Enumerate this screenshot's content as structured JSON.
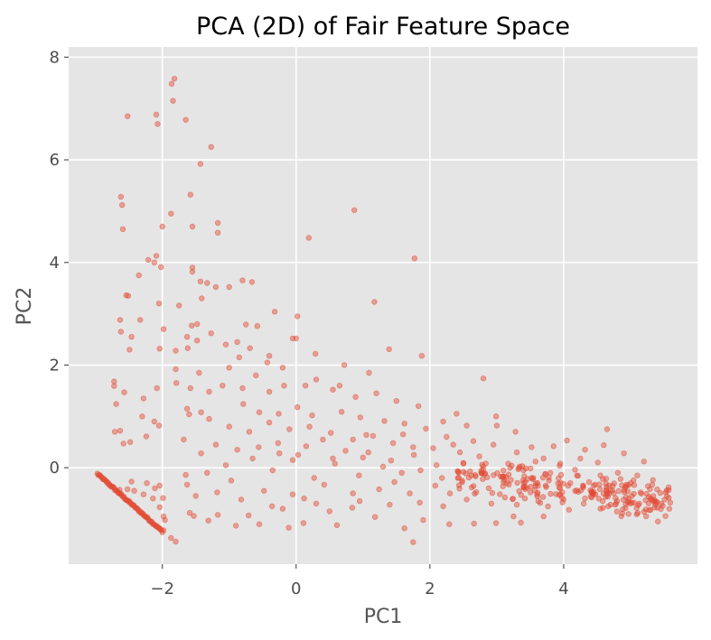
{
  "chart_data": {
    "type": "scatter",
    "title": "PCA (2D) of Fair Feature Space",
    "xlabel": "PC1",
    "ylabel": "PC2",
    "xlim": [
      -3.4,
      6.0
    ],
    "ylim": [
      -1.88,
      8.2
    ],
    "xticks": [
      -2,
      0,
      2,
      4
    ],
    "yticks": [
      0,
      2,
      4,
      6,
      8
    ],
    "xtick_labels": [
      "−2",
      "0",
      "2",
      "4"
    ],
    "ytick_labels": [
      "0",
      "2",
      "4",
      "6",
      "8"
    ],
    "grid": true,
    "style": "ggplot",
    "colors": {
      "point": "#E24A33",
      "background": "#E5E5E5",
      "grid": "#FFFFFF"
    },
    "points": [
      [
        -2.52,
        6.85
      ],
      [
        -2.09,
        6.88
      ],
      [
        -2.07,
        6.7
      ],
      [
        -1.82,
        7.58
      ],
      [
        -1.86,
        7.48
      ],
      [
        -1.84,
        7.15
      ],
      [
        -1.65,
        6.78
      ],
      [
        -1.27,
        6.25
      ],
      [
        -1.43,
        5.92
      ],
      [
        -1.58,
        5.32
      ],
      [
        -1.87,
        4.95
      ],
      [
        -1.55,
        4.7
      ],
      [
        -1.17,
        4.77
      ],
      [
        -1.17,
        4.58
      ],
      [
        -2.62,
        5.28
      ],
      [
        -2.6,
        5.12
      ],
      [
        -2.59,
        4.65
      ],
      [
        -2.0,
        4.7
      ],
      [
        0.19,
        4.48
      ],
      [
        0.87,
        5.02
      ],
      [
        1.77,
        4.08
      ],
      [
        -2.21,
        4.05
      ],
      [
        -2.09,
        4.13
      ],
      [
        -2.12,
        4.0
      ],
      [
        -2.35,
        3.75
      ],
      [
        -2.02,
        3.91
      ],
      [
        -1.55,
        3.9
      ],
      [
        -1.55,
        3.82
      ],
      [
        -1.43,
        3.63
      ],
      [
        -1.33,
        3.6
      ],
      [
        -0.8,
        3.65
      ],
      [
        -0.66,
        3.62
      ],
      [
        -1.0,
        3.52
      ],
      [
        -1.2,
        3.52
      ],
      [
        -2.54,
        3.36
      ],
      [
        -2.51,
        3.35
      ],
      [
        -2.05,
        3.2
      ],
      [
        -1.75,
        3.16
      ],
      [
        -1.41,
        3.3
      ],
      [
        -1.56,
        2.77
      ],
      [
        -2.63,
        2.88
      ],
      [
        -2.62,
        2.65
      ],
      [
        -2.33,
        2.88
      ],
      [
        -2.46,
        2.55
      ],
      [
        -1.98,
        2.7
      ],
      [
        -1.63,
        2.55
      ],
      [
        -1.48,
        2.8
      ],
      [
        -1.27,
        2.62
      ],
      [
        -0.58,
        2.76
      ],
      [
        -0.75,
        2.79
      ],
      [
        -0.32,
        3.04
      ],
      [
        -0.05,
        2.52
      ],
      [
        0.02,
        2.95
      ],
      [
        1.17,
        3.23
      ],
      [
        1.39,
        2.31
      ],
      [
        1.88,
        2.18
      ],
      [
        -2.49,
        2.3
      ],
      [
        -2.04,
        2.32
      ],
      [
        -1.8,
        2.28
      ],
      [
        -1.62,
        2.33
      ],
      [
        -1.48,
        2.48
      ],
      [
        -1.05,
        2.4
      ],
      [
        -0.88,
        2.45
      ],
      [
        -0.69,
        2.33
      ],
      [
        -0.4,
        2.18
      ],
      [
        -0.43,
        2.05
      ],
      [
        0.0,
        2.52
      ],
      [
        0.29,
        2.22
      ],
      [
        0.72,
        2.0
      ],
      [
        1.09,
        1.85
      ],
      [
        2.8,
        1.74
      ],
      [
        -2.72,
        1.68
      ],
      [
        -2.72,
        1.59
      ],
      [
        -2.69,
        1.24
      ],
      [
        -2.57,
        1.47
      ],
      [
        -2.28,
        1.35
      ],
      [
        -2.08,
        1.55
      ],
      [
        -1.79,
        1.65
      ],
      [
        -1.58,
        1.55
      ],
      [
        -1.3,
        1.48
      ],
      [
        -1.1,
        1.6
      ],
      [
        -0.8,
        1.55
      ],
      [
        -0.4,
        1.48
      ],
      [
        -0.18,
        1.6
      ],
      [
        0.14,
        1.6
      ],
      [
        0.55,
        1.52
      ],
      [
        0.89,
        1.38
      ],
      [
        1.2,
        1.45
      ],
      [
        1.5,
        1.3
      ],
      [
        1.83,
        1.2
      ],
      [
        2.4,
        1.05
      ],
      [
        2.99,
        1.0
      ],
      [
        3.0,
        0.82
      ],
      [
        3.28,
        0.7
      ],
      [
        4.65,
        0.75
      ],
      [
        -2.63,
        0.72
      ],
      [
        -2.3,
        1.0
      ],
      [
        -2.12,
        0.9
      ],
      [
        -2.24,
        0.61
      ],
      [
        -2.05,
        0.82
      ],
      [
        -2.48,
        0.5
      ],
      [
        -2.58,
        0.47
      ],
      [
        -1.63,
        1.15
      ],
      [
        -1.6,
        1.04
      ],
      [
        -1.42,
        1.08
      ],
      [
        -0.79,
        1.24
      ],
      [
        -0.55,
        1.08
      ],
      [
        -0.26,
        1.05
      ],
      [
        0.02,
        1.18
      ],
      [
        0.24,
        1.02
      ],
      [
        0.68,
        1.09
      ],
      [
        0.96,
        0.98
      ],
      [
        1.05,
        0.64
      ],
      [
        1.32,
        0.91
      ],
      [
        1.62,
        0.86
      ],
      [
        1.94,
        0.76
      ],
      [
        2.2,
        0.9
      ],
      [
        2.55,
        0.82
      ],
      [
        3.52,
        0.4
      ],
      [
        3.85,
        0.42
      ],
      [
        4.05,
        0.53
      ],
      [
        4.32,
        0.35
      ],
      [
        4.6,
        0.44
      ],
      [
        4.9,
        0.28
      ],
      [
        5.2,
        0.12
      ],
      [
        -2.71,
        0.7
      ],
      [
        -1.63,
        -0.33
      ],
      [
        -1.65,
        -0.14
      ],
      [
        -2.64,
        -0.43
      ],
      [
        -2.52,
        -0.42
      ],
      [
        -2.42,
        -0.45
      ],
      [
        -2.23,
        -0.3
      ],
      [
        -2.11,
        -0.4
      ],
      [
        -2.28,
        -0.52
      ],
      [
        -2.14,
        -0.6
      ],
      [
        -2.46,
        -0.27
      ],
      [
        -2.04,
        -0.35
      ],
      [
        -1.99,
        -0.59
      ],
      [
        -2.04,
        -0.77
      ],
      [
        -1.98,
        -0.95
      ],
      [
        -1.98,
        -1.22
      ],
      [
        -1.87,
        -1.37
      ],
      [
        -1.8,
        -1.44
      ],
      [
        -1.96,
        -1.02
      ],
      [
        -1.59,
        -0.88
      ],
      [
        -1.53,
        -0.94
      ],
      [
        -1.31,
        -1.03
      ],
      [
        -1.17,
        -0.92
      ],
      [
        -0.9,
        -1.13
      ],
      [
        -0.71,
        -0.93
      ],
      [
        -0.55,
        -1.1
      ],
      [
        -0.11,
        -1.17
      ],
      [
        -0.36,
        -0.75
      ],
      [
        0.11,
        -1.08
      ],
      [
        0.3,
        -0.7
      ],
      [
        0.61,
        -1.12
      ],
      [
        0.84,
        -0.78
      ],
      [
        1.18,
        -0.96
      ],
      [
        1.62,
        -1.18
      ],
      [
        1.75,
        -1.45
      ],
      [
        1.9,
        -1.02
      ],
      [
        2.29,
        -1.1
      ],
      [
        2.66,
        -1.09
      ],
      [
        2.99,
        -1.08
      ],
      [
        3.25,
        -0.95
      ],
      [
        3.36,
        -1.07
      ],
      [
        3.7,
        -0.95
      ],
      [
        4.08,
        -0.82
      ],
      [
        4.55,
        -0.8
      ],
      [
        4.97,
        -0.9
      ],
      [
        5.2,
        -0.86
      ],
      [
        5.4,
        -0.78
      ],
      [
        5.58,
        -0.8
      ],
      [
        -0.05,
        -0.52
      ],
      [
        0.42,
        -0.33
      ],
      [
        0.85,
        -0.5
      ],
      [
        1.24,
        -0.42
      ],
      [
        1.47,
        -0.28
      ],
      [
        1.7,
        -0.5
      ],
      [
        2.08,
        -0.35
      ],
      [
        2.3,
        -0.5
      ],
      [
        2.62,
        -0.15
      ],
      [
        2.88,
        -0.4
      ],
      [
        3.1,
        -0.28
      ],
      [
        3.42,
        -0.6
      ],
      [
        3.73,
        -0.35
      ],
      [
        3.95,
        -0.52
      ],
      [
        4.22,
        -0.47
      ],
      [
        4.42,
        -0.58
      ],
      [
        4.68,
        -0.35
      ],
      [
        4.8,
        -0.65
      ],
      [
        5.02,
        -0.55
      ],
      [
        5.27,
        -0.7
      ],
      [
        5.34,
        -0.55
      ],
      [
        2.74,
        0.22
      ],
      [
        3.17,
        0.08
      ],
      [
        3.7,
        0.18
      ],
      [
        4.17,
        -0.04
      ],
      [
        4.51,
        0.1
      ],
      [
        4.81,
        -0.1
      ],
      [
        5.1,
        -0.15
      ],
      [
        -1.42,
        0.28
      ],
      [
        -1.2,
        0.45
      ],
      [
        -1.05,
        0.05
      ],
      [
        -0.88,
        0.35
      ],
      [
        -0.56,
        0.4
      ],
      [
        -0.27,
        0.48
      ],
      [
        0.03,
        0.25
      ],
      [
        0.4,
        0.55
      ],
      [
        0.74,
        0.33
      ],
      [
        1.08,
        0.3
      ],
      [
        1.42,
        0.14
      ],
      [
        1.76,
        0.25
      ],
      [
        2.1,
        0.05
      ],
      [
        2.45,
        0.3
      ],
      [
        -1.68,
        0.55
      ],
      [
        -1.33,
        -0.1
      ],
      [
        -0.97,
        -0.25
      ],
      [
        -0.65,
        0.18
      ],
      [
        -0.35,
        -0.05
      ],
      [
        -0.05,
        0.15
      ],
      [
        0.27,
        -0.2
      ],
      [
        0.58,
        0.08
      ],
      [
        0.94,
        -0.15
      ],
      [
        1.3,
        0.02
      ],
      [
        1.58,
        -0.1
      ],
      [
        1.86,
        -0.05
      ],
      [
        2.18,
        -0.2
      ],
      [
        2.5,
        -0.08
      ],
      [
        2.82,
        -0.12
      ],
      [
        3.14,
        -0.18
      ],
      [
        3.46,
        -0.22
      ],
      [
        3.78,
        -0.25
      ],
      [
        4.1,
        -0.3
      ],
      [
        4.38,
        -0.28
      ],
      [
        4.64,
        -0.45
      ],
      [
        4.92,
        -0.38
      ],
      [
        5.15,
        -0.48
      ],
      [
        5.46,
        -0.7
      ],
      [
        -1.5,
        -0.55
      ],
      [
        -1.18,
        -0.48
      ],
      [
        -0.82,
        -0.62
      ],
      [
        -0.48,
        -0.45
      ],
      [
        -0.2,
        -0.8
      ],
      [
        0.12,
        -0.6
      ],
      [
        0.5,
        -0.85
      ],
      [
        0.95,
        -0.65
      ],
      [
        1.4,
        -0.72
      ],
      [
        1.85,
        -0.68
      ],
      [
        2.2,
        -0.75
      ],
      [
        2.55,
        -0.62
      ],
      [
        2.92,
        -0.7
      ],
      [
        3.3,
        -0.72
      ],
      [
        3.62,
        -0.65
      ],
      [
        4.0,
        -0.62
      ],
      [
        4.3,
        -0.7
      ],
      [
        4.7,
        -0.72
      ],
      [
        5.05,
        -0.68
      ],
      [
        -1.3,
        0.95
      ],
      [
        -1.0,
        0.8
      ],
      [
        -0.7,
        0.7
      ],
      [
        -0.4,
        0.88
      ],
      [
        -0.1,
        0.75
      ],
      [
        0.2,
        0.8
      ],
      [
        0.52,
        0.68
      ],
      [
        0.85,
        0.55
      ],
      [
        1.15,
        0.62
      ],
      [
        1.45,
        0.48
      ],
      [
        1.75,
        0.4
      ],
      [
        2.05,
        0.38
      ],
      [
        2.35,
        0.45
      ],
      [
        2.65,
        0.52
      ],
      [
        3.3,
        0.3
      ],
      [
        3.58,
        0.12
      ],
      [
        3.95,
        0.08
      ],
      [
        4.25,
        0.18
      ],
      [
        4.55,
        -0.15
      ],
      [
        4.85,
        -0.22
      ],
      [
        -0.6,
        1.8
      ],
      [
        -0.2,
        1.95
      ],
      [
        0.3,
        1.72
      ],
      [
        0.65,
        1.6
      ],
      [
        -1.0,
        1.95
      ],
      [
        -1.45,
        1.85
      ],
      [
        -1.8,
        1.92
      ],
      [
        -0.85,
        2.15
      ],
      [
        0.55,
        0.18
      ],
      [
        0.15,
        0.42
      ],
      [
        -0.25,
        0.28
      ],
      [
        1.0,
        0.2
      ],
      [
        1.6,
        0.65
      ],
      [
        2.25,
        0.6
      ],
      [
        2.95,
        0.45
      ],
      [
        3.4,
        -0.05
      ],
      [
        3.8,
        -0.1
      ],
      [
        4.2,
        -0.15
      ],
      [
        4.45,
        -0.35
      ],
      [
        4.75,
        -0.5
      ],
      [
        5.0,
        -0.3
      ],
      [
        5.3,
        -0.6
      ]
    ],
    "diagonal_cluster": {
      "x_start": -2.97,
      "x_end": -2.0,
      "y_at_start": -0.12,
      "y_at_end": -1.24,
      "count": 75
    },
    "dense_band": {
      "x_start": 2.4,
      "x_end": 5.6,
      "count": 210
    }
  }
}
